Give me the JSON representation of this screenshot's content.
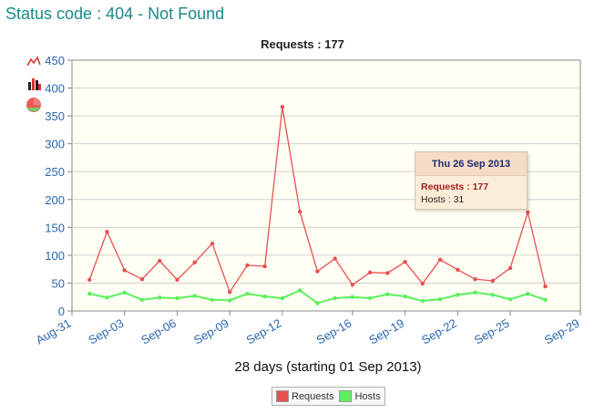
{
  "page": {
    "title": "Status code : 404 - Not Found"
  },
  "chart_data": {
    "type": "line",
    "title": "Requests : 177",
    "xlabel": "28 days (starting 01 Sep 2013)",
    "ylabel": "",
    "ylim": [
      0,
      450
    ],
    "yticks": [
      "0",
      "50",
      "100",
      "150",
      "200",
      "250",
      "300",
      "350",
      "400",
      "450"
    ],
    "xticks": [
      "Aug-31",
      "Sep-03",
      "Sep-06",
      "Sep-09",
      "Sep-12",
      "Sep-16",
      "Sep-19",
      "Sep-22",
      "Sep-25",
      "Sep-29"
    ],
    "grid": true,
    "x": [
      "Sep 01",
      "Sep 02",
      "Sep 03",
      "Sep 04",
      "Sep 05",
      "Sep 06",
      "Sep 07",
      "Sep 08",
      "Sep 09",
      "Sep 10",
      "Sep 11",
      "Sep 12",
      "Sep 13",
      "Sep 14",
      "Sep 15",
      "Sep 16",
      "Sep 17",
      "Sep 18",
      "Sep 19",
      "Sep 20",
      "Sep 21",
      "Sep 22",
      "Sep 23",
      "Sep 24",
      "Sep 25",
      "Sep 26",
      "Sep 27"
    ],
    "series": [
      {
        "name": "Requests",
        "color": "#e85050",
        "values": [
          56,
          142,
          73,
          57,
          90,
          56,
          87,
          121,
          34,
          82,
          80,
          366,
          178,
          71,
          94,
          47,
          69,
          68,
          88,
          49,
          92,
          74,
          57,
          54,
          77,
          177,
          44
        ]
      },
      {
        "name": "Hosts",
        "color": "#5cef5c",
        "values": [
          31,
          24,
          33,
          20,
          24,
          23,
          27,
          20,
          19,
          31,
          26,
          23,
          37,
          14,
          23,
          25,
          23,
          30,
          26,
          18,
          21,
          29,
          33,
          29,
          21,
          31,
          20
        ]
      }
    ],
    "legend_position": "bottom-center"
  },
  "tooltip": {
    "date": "Thu 26 Sep 2013",
    "requests": "Requests : 177",
    "hosts": "Hosts : 31"
  },
  "icons": [
    "line-chart-icon",
    "bar-chart-icon",
    "pie-chart-icon"
  ]
}
